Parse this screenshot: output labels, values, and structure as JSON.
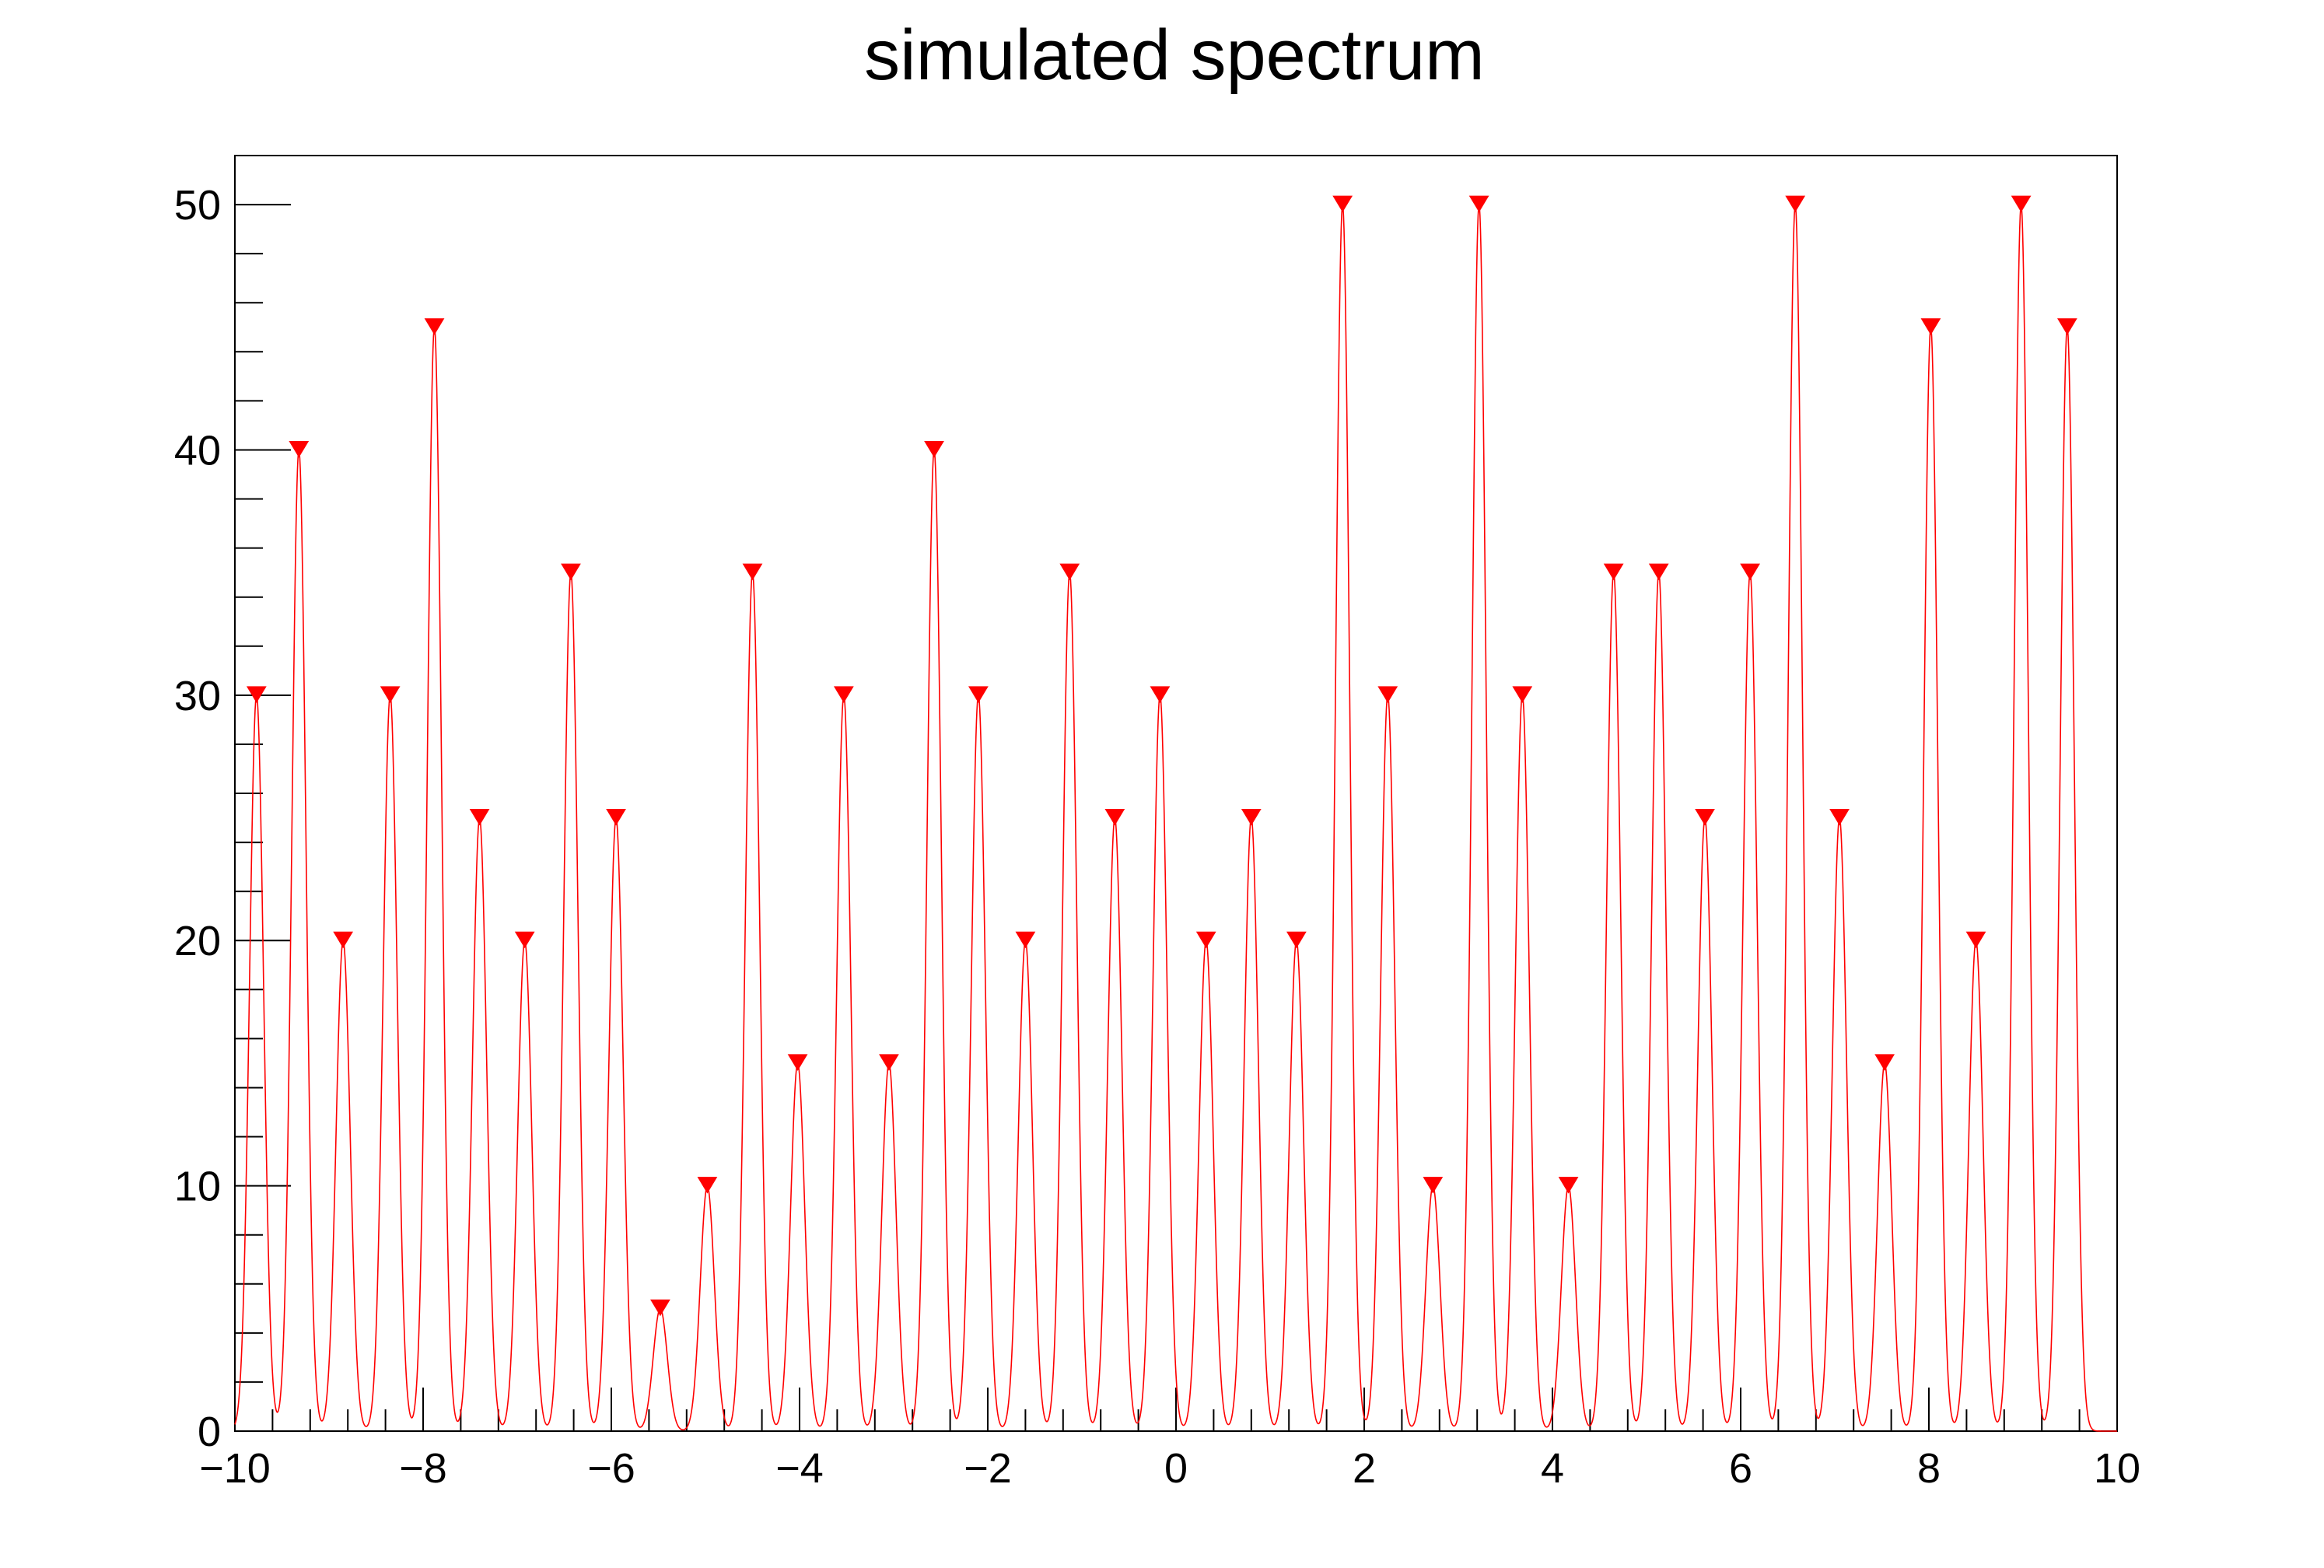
{
  "chart_data": {
    "type": "line",
    "title": "simulated spectrum",
    "xlabel": "",
    "ylabel": "",
    "xlim": [
      -10,
      10
    ],
    "ylim": [
      0,
      52
    ],
    "x_tick_labels": [
      "−10",
      "−8",
      "−6",
      "−4",
      "−2",
      "0",
      "2",
      "4",
      "6",
      "8",
      "10"
    ],
    "x_tick_values": [
      -10,
      -8,
      -6,
      -4,
      -2,
      0,
      2,
      4,
      6,
      8,
      10
    ],
    "y_tick_labels": [
      "0",
      "10",
      "20",
      "30",
      "40",
      "50"
    ],
    "y_tick_values": [
      0,
      10,
      20,
      30,
      40,
      50
    ],
    "grid": false,
    "legend": "none",
    "series": [
      {
        "line_color": "#ff0000",
        "marker_color": "#ff0000",
        "marker_shape": "downward-triangle",
        "peak_width_sigma": 0.075,
        "peaks": [
          {
            "x": -9.77,
            "y": 30
          },
          {
            "x": -9.32,
            "y": 40
          },
          {
            "x": -8.85,
            "y": 20
          },
          {
            "x": -8.35,
            "y": 30
          },
          {
            "x": -7.88,
            "y": 45
          },
          {
            "x": -7.4,
            "y": 25
          },
          {
            "x": -6.92,
            "y": 20
          },
          {
            "x": -6.43,
            "y": 35
          },
          {
            "x": -5.95,
            "y": 25
          },
          {
            "x": -5.48,
            "y": 5
          },
          {
            "x": -4.98,
            "y": 10
          },
          {
            "x": -4.5,
            "y": 35
          },
          {
            "x": -4.02,
            "y": 15
          },
          {
            "x": -3.53,
            "y": 30
          },
          {
            "x": -3.05,
            "y": 15
          },
          {
            "x": -2.57,
            "y": 40
          },
          {
            "x": -2.1,
            "y": 30
          },
          {
            "x": -1.6,
            "y": 20
          },
          {
            "x": -1.13,
            "y": 35
          },
          {
            "x": -0.65,
            "y": 25
          },
          {
            "x": -0.17,
            "y": 30
          },
          {
            "x": 0.32,
            "y": 20
          },
          {
            "x": 0.8,
            "y": 25
          },
          {
            "x": 1.28,
            "y": 20
          },
          {
            "x": 1.77,
            "y": 50
          },
          {
            "x": 2.25,
            "y": 30
          },
          {
            "x": 2.73,
            "y": 10
          },
          {
            "x": 3.22,
            "y": 50
          },
          {
            "x": 3.68,
            "y": 30
          },
          {
            "x": 4.17,
            "y": 10
          },
          {
            "x": 4.65,
            "y": 35
          },
          {
            "x": 5.13,
            "y": 35
          },
          {
            "x": 5.62,
            "y": 25
          },
          {
            "x": 6.1,
            "y": 35
          },
          {
            "x": 6.58,
            "y": 50
          },
          {
            "x": 7.05,
            "y": 25
          },
          {
            "x": 7.53,
            "y": 15
          },
          {
            "x": 8.02,
            "y": 45
          },
          {
            "x": 8.5,
            "y": 20
          },
          {
            "x": 8.98,
            "y": 50
          },
          {
            "x": 9.47,
            "y": 45
          }
        ]
      }
    ]
  }
}
